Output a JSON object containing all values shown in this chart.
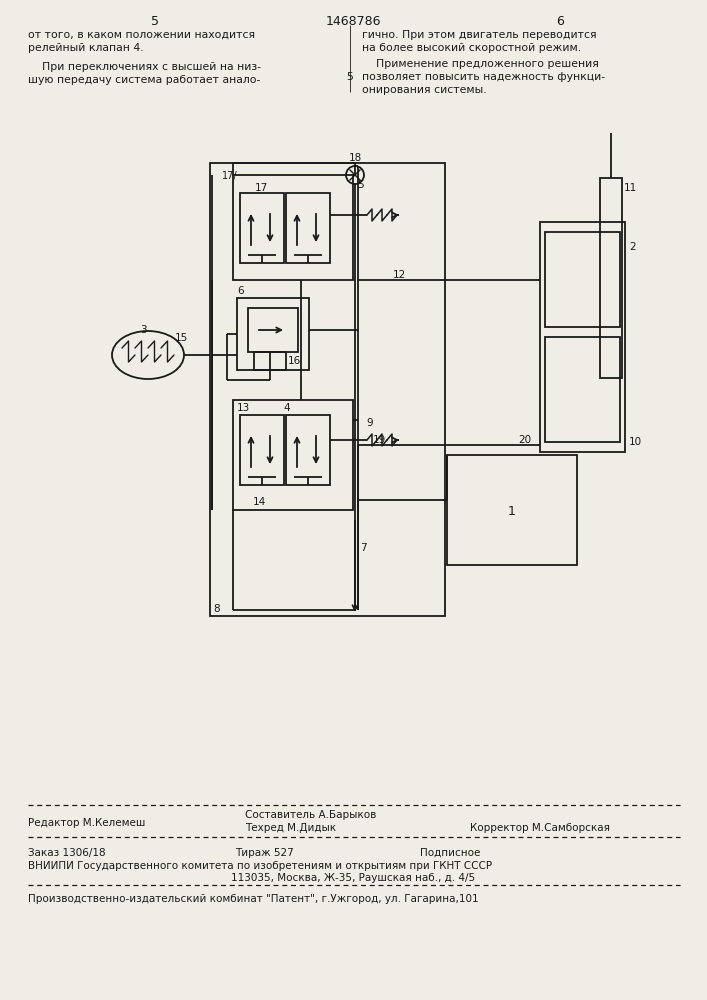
{
  "bg_color": "#f0ede6",
  "line_color": "#1a1a1a",
  "text_color": "#1a1a1a",
  "page_num_left": "5",
  "page_num_center": "1468786",
  "page_num_right": "6",
  "footer_editor": "Редактор М.Келемеш",
  "footer_compiler_title": "Составитель А.Барыков",
  "footer_techred": "Техред М.Дидык",
  "footer_corrector": "Корректор М.Самборская",
  "footer_order": "Заказ 1306/18",
  "footer_tirazh": "Тираж 527",
  "footer_podpisnoe": "Подписное",
  "footer_vniipи": "ВНИИПИ Государственного комитета по изобретениям и открытиям при ГКНТ СССР",
  "footer_address": "113035, Москва, Ж-35, Раушская наб., д. 4/5",
  "footer_publisher": "Производственно-издательский комбинат \"Патент\", г.Ужгород, ул. Гагарина,101"
}
